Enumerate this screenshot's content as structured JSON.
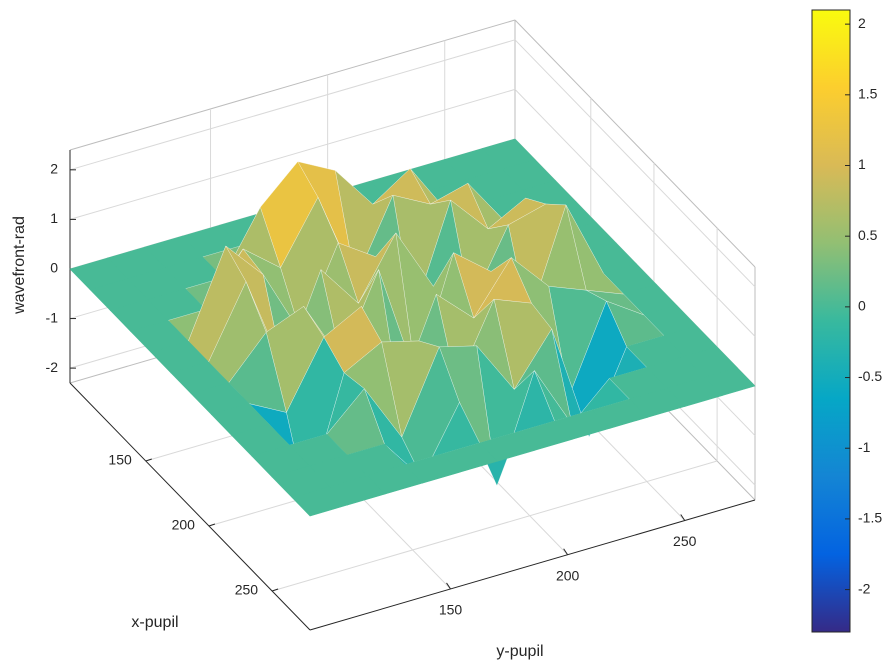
{
  "chart_data": {
    "type": "surface",
    "xlabel": "x-pupil",
    "ylabel": "y-pupil",
    "zlabel": "wavefront-rad",
    "xlim": [
      90,
      280
    ],
    "ylim": [
      90,
      280
    ],
    "zlim": [
      -2.3,
      2.4
    ],
    "xticks": [
      150,
      200,
      250
    ],
    "yticks": [
      150,
      200,
      250
    ],
    "zticks": [
      -2,
      -1,
      0,
      1,
      2
    ],
    "grid": true,
    "colormap": [
      "#352A87",
      "#0363E1",
      "#1485D4",
      "#06A7C6",
      "#38B99E",
      "#92BF73",
      "#D9BA56",
      "#FCCE2E",
      "#F9FB0E"
    ],
    "clim": [
      -2.3,
      2.1
    ],
    "colorbar_ticks": [
      -2,
      -1.5,
      -1,
      -0.5,
      0,
      0.5,
      1,
      1.5,
      2
    ],
    "x": [
      90,
      106,
      122,
      138,
      154,
      170,
      186,
      202,
      218,
      234,
      250,
      266,
      280
    ],
    "y": [
      90,
      106,
      122,
      138,
      154,
      170,
      186,
      202,
      218,
      234,
      250,
      266,
      280
    ],
    "z": [
      [
        0,
        0,
        0,
        0,
        0,
        0,
        0,
        0,
        0,
        0,
        0,
        0,
        0
      ],
      [
        0,
        0,
        0,
        0,
        0,
        0,
        0,
        0,
        0,
        0,
        0,
        0,
        0
      ],
      [
        0,
        0,
        0,
        0,
        1.2,
        1.9,
        1.5,
        0.6,
        1.1,
        0,
        0,
        0,
        0
      ],
      [
        0,
        0,
        0,
        1.0,
        0.4,
        1.6,
        -0.3,
        1.2,
        0.8,
        1.0,
        0,
        0,
        0
      ],
      [
        0,
        0,
        1.7,
        0.9,
        -0.5,
        1.1,
        0.6,
        -0.8,
        1.3,
        0.5,
        0.9,
        0,
        0
      ],
      [
        0,
        0,
        1.4,
        -0.6,
        1.2,
        0.3,
        1.5,
        0.2,
        -0.4,
        1.0,
        1.2,
        0,
        0
      ],
      [
        0,
        0,
        0.8,
        1.1,
        -0.2,
        1.4,
        -1.0,
        1.3,
        0.7,
        -0.5,
        1.6,
        0,
        0
      ],
      [
        0,
        0,
        -0.4,
        0.9,
        1.3,
        -0.7,
        1.1,
        0.4,
        1.4,
        0.6,
        0.3,
        0,
        0
      ],
      [
        0,
        0,
        -1.8,
        0.6,
        1.0,
        0.8,
        -0.3,
        1.2,
        0.9,
        -1.2,
        0.5,
        0,
        0
      ],
      [
        0,
        0,
        0,
        0.7,
        -0.5,
        1.1,
        0.9,
        -0.2,
        0.8,
        -1.6,
        0,
        0,
        0
      ],
      [
        0,
        0,
        0,
        0,
        -0.9,
        0.4,
        -1.5,
        0.6,
        -0.7,
        0,
        0,
        0,
        0
      ],
      [
        0,
        0,
        0,
        0,
        0,
        0,
        0,
        0,
        0,
        0,
        0,
        0,
        0
      ],
      [
        0,
        0,
        0,
        0,
        0,
        0,
        0,
        0,
        0,
        0,
        0,
        0,
        0
      ]
    ]
  }
}
